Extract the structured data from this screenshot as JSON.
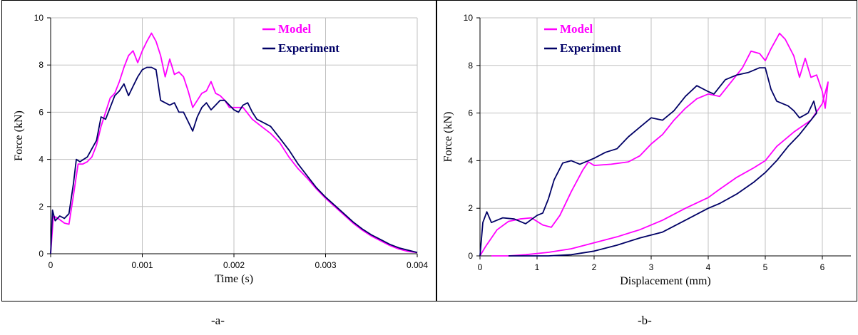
{
  "captions": {
    "a": "-a-",
    "b": "-b-"
  },
  "colors": {
    "model": "#ff00ff",
    "experiment": "#000066",
    "grid": "#c0c0c0"
  },
  "chart_data": [
    {
      "id": "a",
      "type": "line",
      "xlabel": "Time (s)",
      "ylabel": "Force (kN)",
      "xlim": [
        0,
        0.004
      ],
      "ylim": [
        0,
        10
      ],
      "xticks": [
        0,
        0.001,
        0.002,
        0.003,
        0.004
      ],
      "xtick_labels": [
        "0",
        "0.001",
        "0.002",
        "0.003",
        "0.004"
      ],
      "yticks": [
        0,
        2,
        4,
        6,
        8,
        10
      ],
      "ytick_labels": [
        "0",
        "2",
        "4",
        "6",
        "8",
        "10"
      ],
      "grid": true,
      "legend_position": "top-right",
      "series": [
        {
          "name": "Model",
          "color": "#ff00ff",
          "points": [
            [
              0,
              0
            ],
            [
              3e-05,
              1.6
            ],
            [
              8e-05,
              1.5
            ],
            [
              0.00015,
              1.3
            ],
            [
              0.0002,
              1.25
            ],
            [
              0.00025,
              2.5
            ],
            [
              0.0003,
              3.8
            ],
            [
              0.00035,
              3.8
            ],
            [
              0.0004,
              3.9
            ],
            [
              0.00045,
              4.1
            ],
            [
              0.0005,
              4.6
            ],
            [
              0.00055,
              5.4
            ],
            [
              0.0006,
              6.0
            ],
            [
              0.00065,
              6.6
            ],
            [
              0.0007,
              6.8
            ],
            [
              0.00075,
              7.3
            ],
            [
              0.0008,
              7.9
            ],
            [
              0.00085,
              8.4
            ],
            [
              0.0009,
              8.6
            ],
            [
              0.00095,
              8.1
            ],
            [
              0.001,
              8.6
            ],
            [
              0.00105,
              9.0
            ],
            [
              0.0011,
              9.35
            ],
            [
              0.00115,
              9.0
            ],
            [
              0.0012,
              8.4
            ],
            [
              0.00125,
              7.5
            ],
            [
              0.0013,
              8.25
            ],
            [
              0.00135,
              7.6
            ],
            [
              0.0014,
              7.7
            ],
            [
              0.00145,
              7.5
            ],
            [
              0.0015,
              6.9
            ],
            [
              0.00155,
              6.2
            ],
            [
              0.0016,
              6.5
            ],
            [
              0.00165,
              6.8
            ],
            [
              0.0017,
              6.9
            ],
            [
              0.00175,
              7.3
            ],
            [
              0.0018,
              6.8
            ],
            [
              0.00185,
              6.7
            ],
            [
              0.0019,
              6.5
            ],
            [
              0.00195,
              6.2
            ],
            [
              0.002,
              6.2
            ],
            [
              0.0021,
              6.2
            ],
            [
              0.0022,
              5.7
            ],
            [
              0.0023,
              5.4
            ],
            [
              0.0024,
              5.1
            ],
            [
              0.0025,
              4.7
            ],
            [
              0.0026,
              4.1
            ],
            [
              0.0027,
              3.6
            ],
            [
              0.0028,
              3.2
            ],
            [
              0.0029,
              2.75
            ],
            [
              0.003,
              2.35
            ],
            [
              0.0031,
              2.0
            ],
            [
              0.0032,
              1.65
            ],
            [
              0.0033,
              1.3
            ],
            [
              0.0034,
              1.0
            ],
            [
              0.0035,
              0.75
            ],
            [
              0.0036,
              0.55
            ],
            [
              0.0037,
              0.35
            ],
            [
              0.0038,
              0.2
            ],
            [
              0.0039,
              0.1
            ],
            [
              0.004,
              0.05
            ]
          ]
        },
        {
          "name": "Experiment",
          "color": "#000066",
          "points": [
            [
              0,
              0
            ],
            [
              2e-05,
              1.85
            ],
            [
              5e-05,
              1.4
            ],
            [
              0.0001,
              1.6
            ],
            [
              0.00015,
              1.5
            ],
            [
              0.0002,
              1.7
            ],
            [
              0.00025,
              3.0
            ],
            [
              0.00028,
              4.0
            ],
            [
              0.00032,
              3.9
            ],
            [
              0.0004,
              4.1
            ],
            [
              0.0005,
              4.8
            ],
            [
              0.00055,
              5.8
            ],
            [
              0.0006,
              5.7
            ],
            [
              0.00065,
              6.2
            ],
            [
              0.0007,
              6.7
            ],
            [
              0.00075,
              6.9
            ],
            [
              0.0008,
              7.2
            ],
            [
              0.00085,
              6.7
            ],
            [
              0.0009,
              7.1
            ],
            [
              0.00095,
              7.5
            ],
            [
              0.001,
              7.8
            ],
            [
              0.00105,
              7.9
            ],
            [
              0.0011,
              7.9
            ],
            [
              0.00115,
              7.8
            ],
            [
              0.0012,
              6.5
            ],
            [
              0.00125,
              6.4
            ],
            [
              0.0013,
              6.3
            ],
            [
              0.00135,
              6.4
            ],
            [
              0.0014,
              6.0
            ],
            [
              0.00145,
              6.0
            ],
            [
              0.0015,
              5.6
            ],
            [
              0.00155,
              5.2
            ],
            [
              0.0016,
              5.8
            ],
            [
              0.00165,
              6.2
            ],
            [
              0.0017,
              6.4
            ],
            [
              0.00175,
              6.1
            ],
            [
              0.0018,
              6.3
            ],
            [
              0.00185,
              6.5
            ],
            [
              0.0019,
              6.5
            ],
            [
              0.00195,
              6.3
            ],
            [
              0.002,
              6.1
            ],
            [
              0.00205,
              6.0
            ],
            [
              0.0021,
              6.3
            ],
            [
              0.00215,
              6.4
            ],
            [
              0.0022,
              6.0
            ],
            [
              0.00225,
              5.7
            ],
            [
              0.0023,
              5.6
            ],
            [
              0.00235,
              5.5
            ],
            [
              0.0024,
              5.4
            ],
            [
              0.0025,
              4.9
            ],
            [
              0.0026,
              4.4
            ],
            [
              0.0027,
              3.8
            ],
            [
              0.0028,
              3.3
            ],
            [
              0.0029,
              2.8
            ],
            [
              0.003,
              2.4
            ],
            [
              0.0031,
              2.05
            ],
            [
              0.0032,
              1.7
            ],
            [
              0.0033,
              1.35
            ],
            [
              0.0034,
              1.05
            ],
            [
              0.0035,
              0.8
            ],
            [
              0.0036,
              0.6
            ],
            [
              0.0037,
              0.4
            ],
            [
              0.0038,
              0.25
            ],
            [
              0.0039,
              0.15
            ],
            [
              0.004,
              0.05
            ]
          ]
        }
      ]
    },
    {
      "id": "b",
      "type": "line",
      "xlabel": "Displacement (mm)",
      "ylabel": "Force (kN)",
      "xlim": [
        0,
        6.5
      ],
      "ylim": [
        0,
        10
      ],
      "xticks": [
        0,
        1,
        2,
        3,
        4,
        5,
        6
      ],
      "xtick_labels": [
        "0",
        "1",
        "2",
        "3",
        "4",
        "5",
        "6"
      ],
      "yticks": [
        0,
        2,
        4,
        6,
        8,
        10
      ],
      "ytick_labels": [
        "0",
        "2",
        "4",
        "6",
        "8",
        "10"
      ],
      "grid": true,
      "legend_position": "top-left",
      "series": [
        {
          "name": "Model",
          "color": "#ff00ff",
          "points": [
            [
              0,
              0
            ],
            [
              0.1,
              0.4
            ],
            [
              0.3,
              1.1
            ],
            [
              0.5,
              1.45
            ],
            [
              0.7,
              1.55
            ],
            [
              0.9,
              1.6
            ],
            [
              1.0,
              1.45
            ],
            [
              1.1,
              1.3
            ],
            [
              1.25,
              1.2
            ],
            [
              1.4,
              1.7
            ],
            [
              1.6,
              2.7
            ],
            [
              1.8,
              3.6
            ],
            [
              1.9,
              3.95
            ],
            [
              2.0,
              3.8
            ],
            [
              2.3,
              3.85
            ],
            [
              2.6,
              3.95
            ],
            [
              2.8,
              4.2
            ],
            [
              3.0,
              4.7
            ],
            [
              3.2,
              5.1
            ],
            [
              3.4,
              5.7
            ],
            [
              3.6,
              6.2
            ],
            [
              3.8,
              6.6
            ],
            [
              4.0,
              6.8
            ],
            [
              4.2,
              6.7
            ],
            [
              4.4,
              7.3
            ],
            [
              4.6,
              7.9
            ],
            [
              4.75,
              8.6
            ],
            [
              4.9,
              8.5
            ],
            [
              5.0,
              8.2
            ],
            [
              5.1,
              8.7
            ],
            [
              5.25,
              9.35
            ],
            [
              5.35,
              9.1
            ],
            [
              5.5,
              8.4
            ],
            [
              5.6,
              7.5
            ],
            [
              5.7,
              8.3
            ],
            [
              5.8,
              7.5
            ],
            [
              5.9,
              7.6
            ],
            [
              6.0,
              6.9
            ],
            [
              6.05,
              6.2
            ],
            [
              6.1,
              7.3
            ],
            [
              6.0,
              6.4
            ],
            [
              5.8,
              5.7
            ],
            [
              5.5,
              5.2
            ],
            [
              5.2,
              4.6
            ],
            [
              5.0,
              4.0
            ],
            [
              4.8,
              3.7
            ],
            [
              4.5,
              3.3
            ],
            [
              4.2,
              2.8
            ],
            [
              4.0,
              2.45
            ],
            [
              3.6,
              2.0
            ],
            [
              3.2,
              1.5
            ],
            [
              2.8,
              1.1
            ],
            [
              2.4,
              0.8
            ],
            [
              2.0,
              0.55
            ],
            [
              1.6,
              0.3
            ],
            [
              1.2,
              0.15
            ],
            [
              0.8,
              0.05
            ],
            [
              0.5,
              0.0
            ],
            [
              0.2,
              0.0
            ]
          ]
        },
        {
          "name": "Experiment",
          "color": "#000066",
          "points": [
            [
              0,
              0
            ],
            [
              0.05,
              1.4
            ],
            [
              0.12,
              1.85
            ],
            [
              0.2,
              1.4
            ],
            [
              0.4,
              1.6
            ],
            [
              0.6,
              1.55
            ],
            [
              0.8,
              1.35
            ],
            [
              1.0,
              1.7
            ],
            [
              1.1,
              1.8
            ],
            [
              1.2,
              2.4
            ],
            [
              1.3,
              3.2
            ],
            [
              1.45,
              3.9
            ],
            [
              1.6,
              4.0
            ],
            [
              1.75,
              3.85
            ],
            [
              2.0,
              4.1
            ],
            [
              2.2,
              4.35
            ],
            [
              2.4,
              4.5
            ],
            [
              2.6,
              5.0
            ],
            [
              2.8,
              5.4
            ],
            [
              3.0,
              5.8
            ],
            [
              3.2,
              5.7
            ],
            [
              3.4,
              6.1
            ],
            [
              3.6,
              6.7
            ],
            [
              3.8,
              7.15
            ],
            [
              4.0,
              6.9
            ],
            [
              4.1,
              6.8
            ],
            [
              4.3,
              7.4
            ],
            [
              4.5,
              7.6
            ],
            [
              4.7,
              7.7
            ],
            [
              4.9,
              7.9
            ],
            [
              5.0,
              7.9
            ],
            [
              5.1,
              7.0
            ],
            [
              5.2,
              6.5
            ],
            [
              5.4,
              6.3
            ],
            [
              5.5,
              6.1
            ],
            [
              5.6,
              5.8
            ],
            [
              5.75,
              6.0
            ],
            [
              5.85,
              6.5
            ],
            [
              5.9,
              6.0
            ],
            [
              5.8,
              5.7
            ],
            [
              5.6,
              5.1
            ],
            [
              5.4,
              4.6
            ],
            [
              5.2,
              4.0
            ],
            [
              5.0,
              3.5
            ],
            [
              4.8,
              3.1
            ],
            [
              4.5,
              2.6
            ],
            [
              4.2,
              2.2
            ],
            [
              4.0,
              2.0
            ],
            [
              3.6,
              1.5
            ],
            [
              3.2,
              1.0
            ],
            [
              2.8,
              0.75
            ],
            [
              2.4,
              0.45
            ],
            [
              2.0,
              0.2
            ],
            [
              1.6,
              0.05
            ],
            [
              1.2,
              0.0
            ],
            [
              0.5,
              0.0
            ]
          ]
        }
      ]
    }
  ]
}
